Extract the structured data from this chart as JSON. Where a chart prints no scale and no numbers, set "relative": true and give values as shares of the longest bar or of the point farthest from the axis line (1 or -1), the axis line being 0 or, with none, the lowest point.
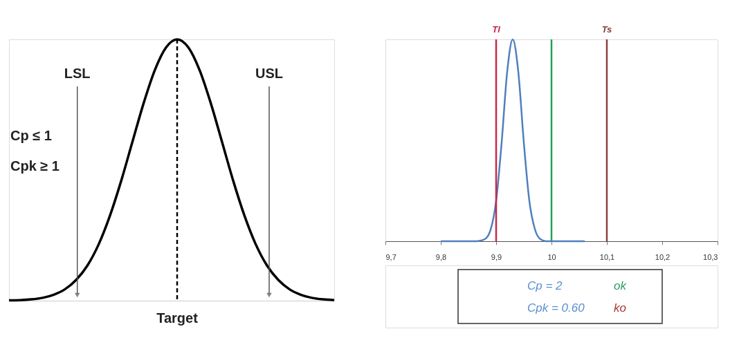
{
  "chart_data": [
    {
      "type": "line",
      "relative": true,
      "tick_labels": false,
      "categories": [
        null,
        null,
        null,
        null,
        null,
        null,
        null,
        null,
        null,
        null,
        null,
        null,
        null,
        null,
        null,
        null,
        null,
        null,
        null,
        null,
        null,
        null,
        null,
        null,
        null,
        null,
        null,
        null,
        null,
        null
      ],
      "series": [
        {
          "color": "#000000",
          "values": [
            0.001,
            0.002,
            0.005,
            0.011,
            0.023,
            0.044,
            0.08,
            0.135,
            0.216,
            0.325,
            0.458,
            0.607,
            0.755,
            0.882,
            0.969,
            1,
            0.969,
            0.882,
            0.755,
            0.607,
            0.458,
            0.325,
            0.216,
            0.135,
            0.08,
            0.044,
            0.023,
            0.011,
            0.005,
            0.002
          ]
        }
      ],
      "annotations": [
        "LSL",
        "Target",
        "USL",
        "Cp ≤ 1",
        "Cpk ≥ 1"
      ]
    },
    {
      "type": "line",
      "relative": true,
      "tick_labels": "x",
      "x": [
        9.8,
        9.81,
        9.82,
        9.83,
        9.84,
        9.85,
        9.86,
        9.87,
        9.88,
        9.89,
        9.9,
        9.91,
        9.92,
        9.93,
        9.94,
        9.95,
        9.96,
        9.97,
        9.98,
        9.99,
        10.0,
        10.01,
        10.02,
        10.03,
        10.04,
        10.05,
        10.06
      ],
      "xlim": [
        9.7,
        10.3
      ],
      "xticks": [
        {
          "value": 9.7,
          "label": "9,7"
        },
        {
          "value": 9.8,
          "label": "9,8"
        },
        {
          "value": 9.9,
          "label": "9,9"
        },
        10,
        {
          "value": 10.1,
          "label": "10,1"
        },
        {
          "value": 10.2,
          "label": "10,2"
        },
        {
          "value": 10.3,
          "label": "10,3"
        }
      ],
      "series": [
        {
          "color": "#4f7fbf",
          "values": [
            0,
            0,
            0,
            0,
            0,
            0,
            0,
            0.002,
            0.011,
            0.057,
            0.2,
            0.49,
            0.84,
            1,
            0.84,
            0.49,
            0.2,
            0.06,
            0.01,
            0,
            0,
            0,
            0,
            0,
            0,
            0,
            0
          ]
        }
      ],
      "ref_lines": [
        {
          "axis": "x",
          "value": 9.9,
          "label": "Tl",
          "color": "#c8284a"
        },
        {
          "axis": "x",
          "value": 10,
          "label": null,
          "color": "#22a05a"
        },
        {
          "axis": "x",
          "value": 10.1,
          "label": "Ts",
          "color": "#8b4040"
        }
      ],
      "annotations": [
        "Cp =  2",
        "ok",
        "Cpk = 0.60",
        "ko"
      ]
    }
  ]
}
